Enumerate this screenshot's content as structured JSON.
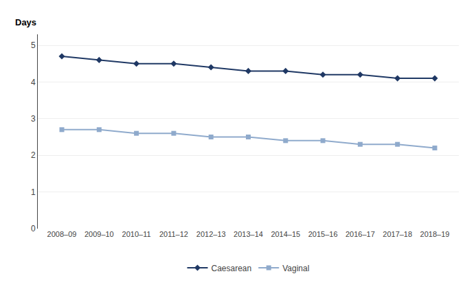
{
  "chart_data": {
    "type": "line",
    "ylabel": "Days",
    "categories": [
      "2008–09",
      "2009–10",
      "2010–11",
      "2011–12",
      "2012–13",
      "2013–14",
      "2014–15",
      "2015–16",
      "2016–17",
      "2017–18",
      "2018–19"
    ],
    "series": [
      {
        "name": "Caesarean",
        "color": "#1F3864",
        "marker": "diamond",
        "line_style": "solid",
        "values": [
          4.7,
          4.6,
          4.5,
          4.5,
          4.4,
          4.3,
          4.3,
          4.2,
          4.2,
          4.1,
          4.1
        ]
      },
      {
        "name": "Vaginal",
        "color": "#8FAACC",
        "marker": "square",
        "line_style": "solid",
        "values": [
          2.7,
          2.7,
          2.6,
          2.6,
          2.5,
          2.5,
          2.4,
          2.4,
          2.3,
          2.3,
          2.2
        ]
      }
    ],
    "ylim": [
      0,
      5.3
    ],
    "yticks": [
      0,
      1,
      2,
      3,
      4,
      5
    ],
    "grid": "y",
    "legend": "bottom"
  }
}
